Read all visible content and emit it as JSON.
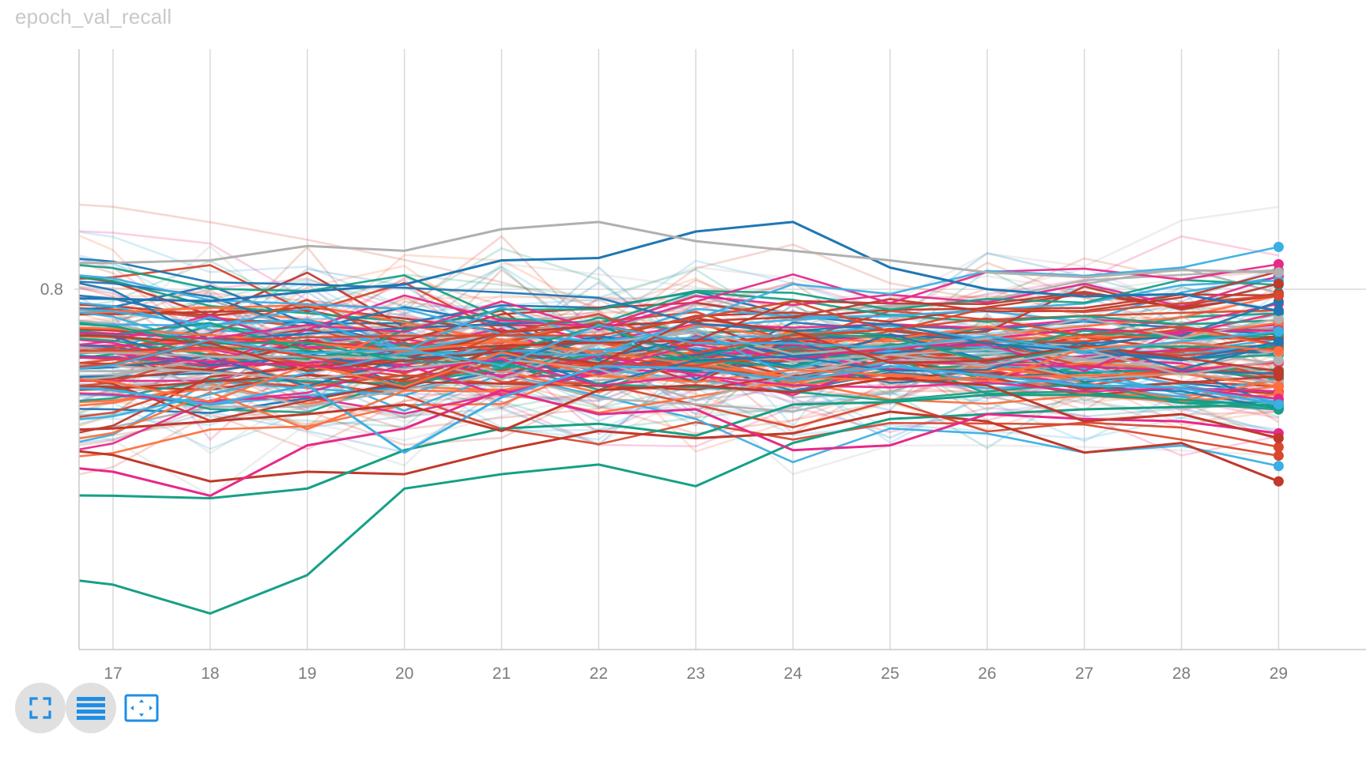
{
  "chart_data": {
    "type": "line",
    "title": "epoch_val_recall",
    "x": [
      17,
      18,
      19,
      20,
      21,
      22,
      23,
      24,
      25,
      26,
      27,
      28,
      29
    ],
    "x_ticks": [
      "17",
      "18",
      "19",
      "20",
      "21",
      "22",
      "23",
      "24",
      "25",
      "26",
      "27",
      "28",
      "29"
    ],
    "y_ticks": [
      "0.8"
    ],
    "y_tick_values": [
      0.8
    ],
    "xlim": [
      16.65,
      29.9
    ],
    "ylim": [
      0.65,
      0.9
    ],
    "grid": "vertical",
    "legend": "none",
    "palette": [
      "#1f77b4",
      "#c0392b",
      "#e7298a",
      "#16a085",
      "#ff6f3c",
      "#3aafe3",
      "#b0b0b0",
      "#d8482e"
    ],
    "series_count_approx": 160,
    "random_seed": 7,
    "background_opacity": 0.22,
    "foreground_opacity": 0.95,
    "highlighted_series": [
      {
        "color": "#16a085",
        "values": [
          0.677,
          0.665,
          0.681,
          0.717,
          0.723,
          0.727,
          0.718,
          0.736,
          0.746,
          0.748,
          0.75,
          0.751,
          0.752
        ]
      },
      {
        "color": "#c0392b",
        "values": [
          0.731,
          0.72,
          0.724,
          0.723,
          0.733,
          0.741,
          0.738,
          0.74,
          0.749,
          0.745,
          0.732,
          0.736,
          0.72
        ]
      },
      {
        "color": "#16a085",
        "values": [
          0.714,
          0.713,
          0.717,
          0.733,
          0.742,
          0.744,
          0.739,
          0.752,
          0.753,
          0.756,
          0.756,
          0.754,
          0.751
        ]
      },
      {
        "color": "#e7298a",
        "values": [
          0.724,
          0.714,
          0.735,
          0.742,
          0.758,
          0.748,
          0.75,
          0.733,
          0.735,
          0.748,
          0.746,
          0.745,
          0.74
        ]
      },
      {
        "color": "#1f77b4",
        "values": [
          0.796,
          0.795,
          0.799,
          0.802,
          0.812,
          0.813,
          0.824,
          0.828,
          0.809,
          0.8,
          0.797,
          0.798,
          0.791
        ]
      },
      {
        "color": "#b0b0b0",
        "values": [
          0.811,
          0.812,
          0.818,
          0.816,
          0.825,
          0.828,
          0.82,
          0.816,
          0.812,
          0.807,
          0.805,
          0.808,
          0.807
        ]
      },
      {
        "color": "#3aafe3",
        "values": [
          0.758,
          0.752,
          0.76,
          0.732,
          0.755,
          0.768,
          0.767,
          0.762,
          0.768,
          0.764,
          0.76,
          0.759,
          0.752
        ]
      },
      {
        "color": "#c0392b",
        "values": [
          0.742,
          0.745,
          0.748,
          0.752,
          0.741,
          0.758,
          0.76,
          0.757,
          0.763,
          0.76,
          0.745,
          0.748,
          0.738
        ]
      }
    ]
  },
  "controls": {
    "fullscreen": "fullscreen-toggle",
    "data": "toggle-data-table",
    "fit": "fit-domain-to-data"
  }
}
